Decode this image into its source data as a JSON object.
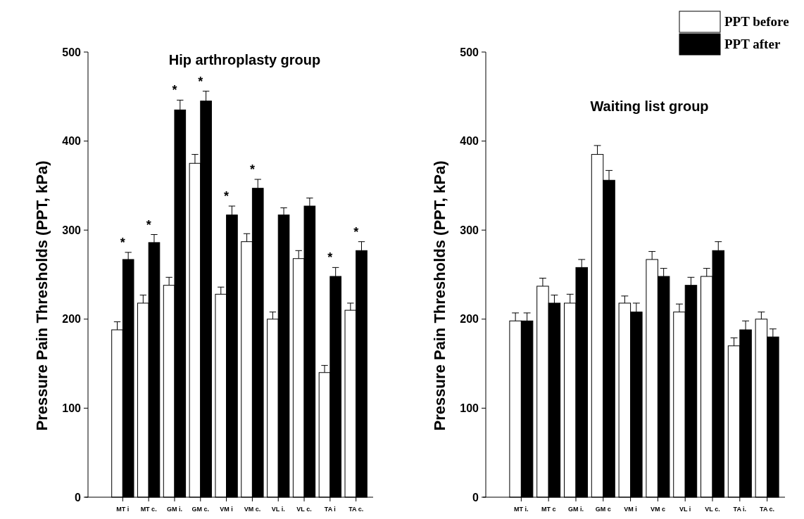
{
  "chart_data": [
    {
      "type": "bar",
      "title": "Hip arthroplasty group",
      "ylabel": "Pressure Pain Thresholds (PPT, kPa)",
      "categories": [
        "MT i",
        "MT c.",
        "GM i.",
        "GM c.",
        "VM i",
        "VM c.",
        "VL i.",
        "VL c.",
        "TA i",
        "TA c."
      ],
      "series": [
        {
          "color": "#ffffff",
          "values": [
            188,
            218,
            238,
            375,
            228,
            287,
            200,
            268,
            140,
            210
          ],
          "errors": [
            [
              188,
              197
            ],
            [
              218,
              227
            ],
            [
              238,
              247
            ],
            [
              375,
              385
            ],
            [
              228,
              236
            ],
            [
              287,
              296
            ],
            [
              200,
              208
            ],
            [
              268,
              277
            ],
            [
              140,
              148
            ],
            [
              210,
              218
            ]
          ]
        },
        {
          "color": "#000000",
          "values": [
            267,
            286,
            435,
            445,
            317,
            347,
            317,
            327,
            248,
            277
          ],
          "errors": [
            [
              267,
              275
            ],
            [
              286,
              295
            ],
            [
              435,
              446
            ],
            [
              445,
              456
            ],
            [
              317,
              327
            ],
            [
              347,
              357
            ],
            [
              317,
              325
            ],
            [
              327,
              336
            ],
            [
              248,
              258
            ],
            [
              277,
              287
            ]
          ]
        }
      ],
      "annotations": [
        {
          "text": "*",
          "x": "MT i",
          "y": 275
        },
        {
          "text": "*",
          "x": "MT c.",
          "y": 295
        },
        {
          "text": "*",
          "x": "GM i.",
          "y": 446
        },
        {
          "text": "*",
          "x": "GM c.",
          "y": 456
        },
        {
          "text": "*",
          "x": "VM i",
          "y": 327
        },
        {
          "text": "*",
          "x": "VM c.",
          "y": 357
        },
        {
          "text": "*",
          "x": "TA i",
          "y": 258
        },
        {
          "text": "*",
          "x": "TA c.",
          "y": 287
        }
      ],
      "ylim": [
        0,
        500
      ],
      "yticks": [
        0,
        100,
        200,
        300,
        400,
        500
      ],
      "grid": false,
      "legend": false
    },
    {
      "type": "bar",
      "title": "Waiting list group",
      "ylabel": "Pressure Pain Thresholds (PPT, kPa)",
      "categories": [
        "MT i.",
        "MT c",
        "GM i.",
        "GM c",
        "VM i",
        "VM c",
        "VL i",
        "VL c.",
        "TA i.",
        "TA c."
      ],
      "series": [
        {
          "name": "PPT before",
          "color": "#ffffff",
          "values": [
            198,
            237,
            218,
            385,
            218,
            267,
            208,
            248,
            170,
            200
          ],
          "errors": [
            [
              198,
              207
            ],
            [
              237,
              246
            ],
            [
              218,
              228
            ],
            [
              385,
              395
            ],
            [
              218,
              226
            ],
            [
              267,
              276
            ],
            [
              208,
              217
            ],
            [
              248,
              257
            ],
            [
              170,
              179
            ],
            [
              200,
              208
            ]
          ]
        },
        {
          "name": "PPT after",
          "color": "#000000",
          "values": [
            198,
            218,
            258,
            356,
            208,
            248,
            238,
            277,
            188,
            180
          ],
          "errors": [
            [
              198,
              207
            ],
            [
              218,
              227
            ],
            [
              258,
              267
            ],
            [
              356,
              367
            ],
            [
              208,
              218
            ],
            [
              248,
              257
            ],
            [
              238,
              247
            ],
            [
              277,
              287
            ],
            [
              188,
              198
            ],
            [
              180,
              189
            ]
          ]
        }
      ],
      "ylim": [
        0,
        500
      ],
      "yticks": [
        0,
        100,
        200,
        300,
        400,
        500
      ],
      "grid": false,
      "legend": "top right"
    }
  ]
}
